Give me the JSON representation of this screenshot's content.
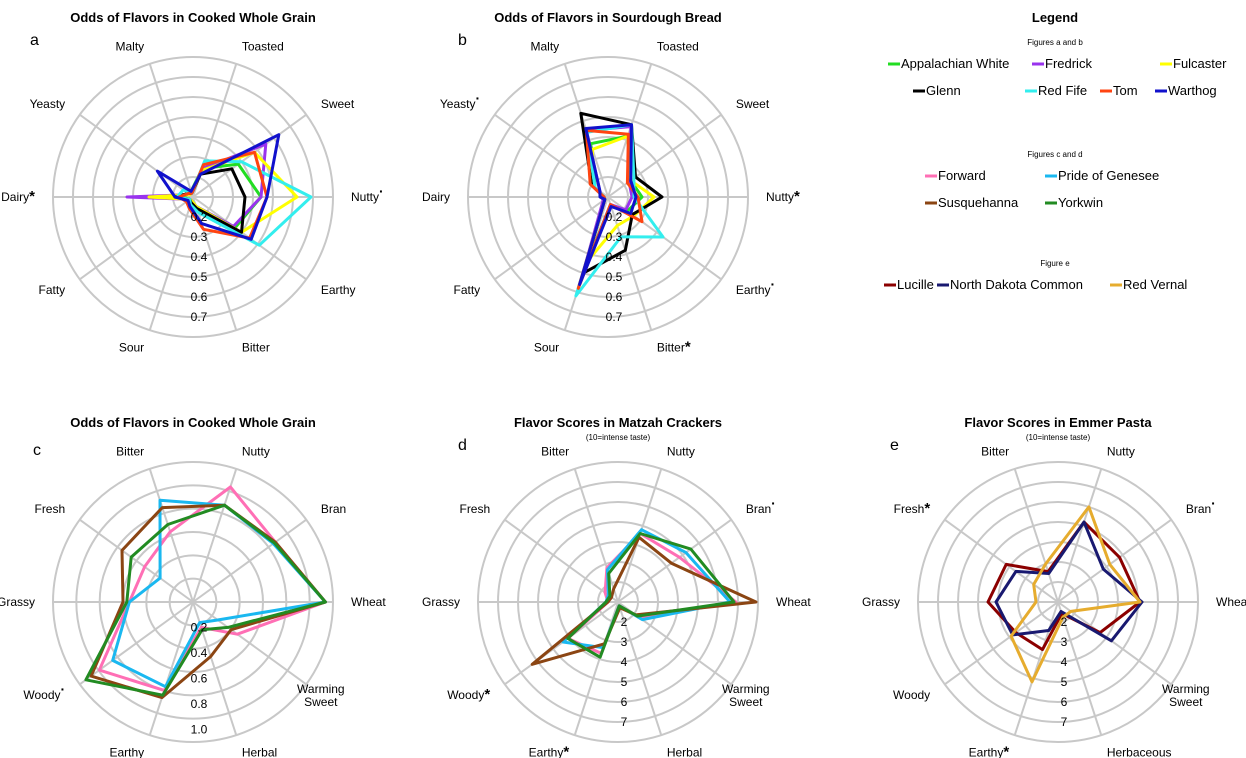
{
  "colors": {
    "grid": "#c8c8c8",
    "Appalachian White": "#22dd22",
    "Fredrick": "#9933ee",
    "Fulcaster": "#ffff00",
    "Glenn": "#000000",
    "Red Fife": "#33eeee",
    "Tom": "#ff4411",
    "Warthog": "#1111cc",
    "Forward": "#ff6fb5",
    "Pride of Genesee": "#1ab8f0",
    "Susquehanna": "#8b4513",
    "Yorkwin": "#228b22",
    "Lucille": "#8b0000",
    "North Dakota Common": "#191970",
    "Red Vernal": "#e6ac2e"
  },
  "legend": {
    "title": "Legend",
    "groups": [
      {
        "caption": "Figures a and b",
        "rows": [
          [
            "Appalachian White",
            "Fredrick",
            "Fulcaster"
          ],
          [
            "Glenn",
            "Red Fife",
            "Tom",
            "Warthog"
          ]
        ]
      },
      {
        "caption": "Figures c and d",
        "rows": [
          [
            "Forward",
            "Pride of Genesee"
          ],
          [
            "Susquehanna",
            "Yorkwin"
          ]
        ]
      },
      {
        "caption": "Figure e",
        "rows": [
          [
            "Lucille",
            "North Dakota Common",
            "Red Vernal"
          ]
        ]
      }
    ]
  },
  "chart_data": [
    {
      "panel": "a",
      "type": "radar",
      "title": "Odds of Flavors in Cooked Whole Grain",
      "subtitle": "",
      "axes": [
        "Toasted",
        "Sweet",
        "Nutty",
        "Earthy",
        "Bitter",
        "Sour",
        "Fatty",
        "Dairy",
        "Yeasty",
        "Malty"
      ],
      "axis_marks": [
        "",
        "",
        "·",
        "",
        "",
        "",
        "",
        "*",
        "",
        ""
      ],
      "ticks": [
        "0.2",
        "0.3",
        "0.4",
        "0.5",
        "0.6",
        "0.7"
      ],
      "range": [
        0.1,
        0.8
      ],
      "series": [
        {
          "name": "Appalachian White",
          "values": [
            0.25,
            0.38,
            0.44,
            0.36,
            0.15,
            0.12,
            0.12,
            0.15,
            0.13,
            0.13
          ]
        },
        {
          "name": "Fredrick",
          "values": [
            0.25,
            0.55,
            0.44,
            0.35,
            0.15,
            0.12,
            0.12,
            0.43,
            0.12,
            0.12
          ]
        },
        {
          "name": "Fulcaster",
          "values": [
            0.24,
            0.48,
            0.62,
            0.4,
            0.15,
            0.12,
            0.12,
            0.32,
            0.12,
            0.12
          ]
        },
        {
          "name": "Glenn",
          "values": [
            0.22,
            0.34,
            0.36,
            0.4,
            0.16,
            0.13,
            0.12,
            0.19,
            0.13,
            0.12
          ]
        },
        {
          "name": "Red Fife",
          "values": [
            0.29,
            0.4,
            0.69,
            0.51,
            0.18,
            0.14,
            0.12,
            0.18,
            0.16,
            0.12
          ]
        },
        {
          "name": "Tom",
          "values": [
            0.27,
            0.48,
            0.47,
            0.45,
            0.27,
            0.16,
            0.14,
            0.17,
            0.13,
            0.12
          ]
        },
        {
          "name": "Warthog",
          "values": [
            0.22,
            0.63,
            0.47,
            0.46,
            0.24,
            0.15,
            0.13,
            0.19,
            0.32,
            0.13
          ]
        }
      ]
    },
    {
      "panel": "b",
      "type": "radar",
      "title": "Odds of Flavors in Sourdough Bread",
      "subtitle": "",
      "axes": [
        "Toasted",
        "Sweet",
        "Nutty",
        "Earthy",
        "Bitter",
        "Sour",
        "Fatty",
        "Dairy",
        "Yeasty",
        "Malty"
      ],
      "axis_marks": [
        "",
        "",
        "*",
        "·",
        "*",
        "",
        "",
        "",
        "·",
        ""
      ],
      "ticks": [
        "0.2",
        "0.3",
        "0.4",
        "0.5",
        "0.6",
        "0.7"
      ],
      "range": [
        0.1,
        0.8
      ],
      "series": [
        {
          "name": "Appalachian White",
          "values": [
            0.42,
            0.24,
            0.27,
            0.22,
            0.14,
            0.49,
            0.12,
            0.12,
            0.18,
            0.38
          ]
        },
        {
          "name": "Fredrick",
          "values": [
            0.47,
            0.23,
            0.22,
            0.21,
            0.14,
            0.53,
            0.13,
            0.13,
            0.15,
            0.45
          ]
        },
        {
          "name": "Fulcaster",
          "values": [
            0.42,
            0.24,
            0.33,
            0.26,
            0.25,
            0.44,
            0.12,
            0.12,
            0.2,
            0.35
          ]
        },
        {
          "name": "Glenn",
          "values": [
            0.48,
            0.27,
            0.37,
            0.25,
            0.38,
            0.5,
            0.12,
            0.12,
            0.2,
            0.54
          ]
        },
        {
          "name": "Red Fife",
          "values": [
            0.48,
            0.26,
            0.23,
            0.44,
            0.31,
            0.62,
            0.12,
            0.12,
            0.18,
            0.44
          ]
        },
        {
          "name": "Tom",
          "values": [
            0.43,
            0.22,
            0.25,
            0.31,
            0.14,
            0.58,
            0.12,
            0.12,
            0.21,
            0.45
          ]
        },
        {
          "name": "Warthog",
          "values": [
            0.48,
            0.24,
            0.24,
            0.24,
            0.15,
            0.56,
            0.12,
            0.14,
            0.15,
            0.46
          ]
        }
      ]
    },
    {
      "panel": "c",
      "type": "radar",
      "title": "Odds of Flavors in Cooked Whole Grain",
      "subtitle": "",
      "axes": [
        "Nutty",
        "Bran",
        "Wheat",
        "Warming Sweet",
        "Herbal",
        "Earthy",
        "Woody",
        "Grassy",
        "Fresh",
        "Bitter"
      ],
      "axis_marks": [
        "",
        "",
        "",
        "",
        "",
        "",
        "·",
        "",
        "",
        ""
      ],
      "ticks": [
        "0.2",
        "0.4",
        "0.6",
        "0.8",
        "1.0"
      ],
      "range": [
        0.0,
        1.1
      ],
      "series": [
        {
          "name": "Forward",
          "values": [
            0.95,
            0.8,
            1.04,
            0.43,
            0.21,
            0.73,
            0.91,
            0.5,
            0.47,
            0.58
          ]
        },
        {
          "name": "Pride of Genesee",
          "values": [
            0.8,
            0.78,
            1.04,
            0.24,
            0.17,
            0.7,
            0.78,
            0.5,
            0.32,
            0.84
          ]
        },
        {
          "name": "Susquehanna",
          "values": [
            0.8,
            0.8,
            1.04,
            0.37,
            0.45,
            0.79,
            0.99,
            0.55,
            0.69,
            0.78
          ]
        },
        {
          "name": "Yorkwin",
          "values": [
            0.8,
            0.79,
            1.04,
            0.34,
            0.23,
            0.77,
            1.04,
            0.52,
            0.6,
            0.64
          ]
        }
      ]
    },
    {
      "panel": "d",
      "type": "radar",
      "title": "Flavor Scores in Matzah Crackers",
      "subtitle": "(10=intense taste)",
      "axes": [
        "Nutty",
        "Bran",
        "Wheat",
        "Warming Sweet",
        "Herbal",
        "Earthy",
        "Woody",
        "Grassy",
        "Fresh",
        "Bitter"
      ],
      "axis_marks": [
        "",
        "·",
        "",
        "",
        "",
        "*",
        "*",
        "",
        "",
        ""
      ],
      "ticks": [
        "2",
        "3",
        "4",
        "5",
        "6",
        "7"
      ],
      "range": [
        1,
        8
      ],
      "series": [
        {
          "name": "Forward",
          "values": [
            4.6,
            4.8,
            6.9,
            2.3,
            1.2,
            3.7,
            4.1,
            1.5,
            1.8,
            2.8
          ]
        },
        {
          "name": "Pride of Genesee",
          "values": [
            4.8,
            5.2,
            6.6,
            2.5,
            1.2,
            3.4,
            4.4,
            1.6,
            1.6,
            2.7
          ]
        },
        {
          "name": "Susquehanna",
          "values": [
            4.4,
            4.3,
            7.9,
            2.1,
            1.3,
            3.2,
            6.3,
            1.5,
            1.4,
            1.7
          ]
        },
        {
          "name": "Yorkwin",
          "values": [
            4.6,
            5.5,
            6.8,
            2.2,
            1.2,
            3.9,
            4.1,
            1.6,
            1.5,
            2.5
          ]
        }
      ]
    },
    {
      "panel": "e",
      "type": "radar",
      "title": "Flavor Scores in Emmer Pasta",
      "subtitle": "(10=intense taste)",
      "axes": [
        "Nutty",
        "Bran",
        "Wheat",
        "Warming Sweet",
        "Herbaceous",
        "Earthy",
        "Woody",
        "Grassy",
        "Fresh",
        "Bitter"
      ],
      "axis_marks": [
        "",
        "·",
        "",
        "",
        "",
        "*",
        "",
        "",
        "*",
        ""
      ],
      "ticks": [
        "2",
        "3",
        "4",
        "5",
        "6",
        "7"
      ],
      "range": [
        1,
        8
      ],
      "series": [
        {
          "name": "Lucille",
          "values": [
            5.2,
            4.8,
            5.1,
            3.6,
            1.6,
            3.5,
            3.6,
            4.5,
            4.2,
            2.6
          ]
        },
        {
          "name": "North Dakota Common",
          "values": [
            5.2,
            3.8,
            5.2,
            4.3,
            1.5,
            2.5,
            3.8,
            4.1,
            3.6,
            2.5
          ]
        },
        {
          "name": "Red Vernal",
          "values": [
            6.0,
            4.2,
            5.1,
            1.8,
            1.8,
            5.2,
            3.9,
            2.1,
            2.5,
            3.0
          ]
        }
      ]
    }
  ]
}
